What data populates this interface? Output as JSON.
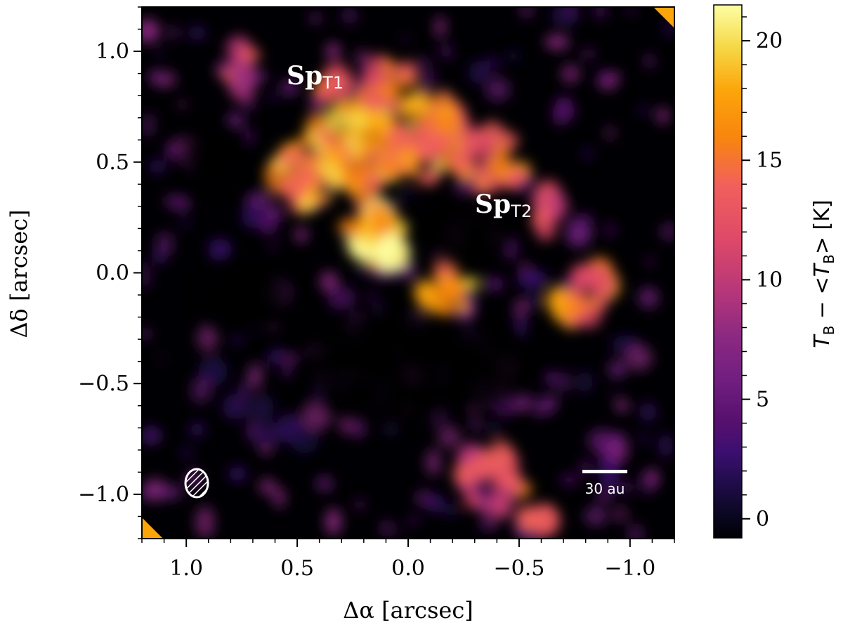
{
  "chart_data": {
    "type": "heatmap",
    "xlabel": "Δα [arcsec]",
    "ylabel": "Δδ [arcsec]",
    "xlim": [
      1.2,
      -1.2
    ],
    "ylim": [
      -1.2,
      1.2
    ],
    "x_ticks": [
      1.0,
      0.5,
      0.0,
      -0.5,
      -1.0
    ],
    "x_tick_labels": [
      "1.0",
      "0.5",
      "0.0",
      "−0.5",
      "−1.0"
    ],
    "y_ticks": [
      1.0,
      0.5,
      0.0,
      -0.5,
      -1.0
    ],
    "y_tick_labels": [
      "1.0",
      "0.5",
      "0.0",
      "−0.5",
      "−1.0"
    ],
    "colorbar": {
      "label_parts": [
        "T",
        "B",
        " − <",
        "T",
        "B",
        "> [K]"
      ],
      "range": [
        -0.8,
        21.5
      ],
      "ticks": [
        0,
        5,
        10,
        15,
        20
      ],
      "tick_labels": [
        "0",
        "5",
        "10",
        "15",
        "20"
      ],
      "colormap": "inferno"
    },
    "annotations": [
      {
        "main": "Sp",
        "sub": "T1",
        "x": 0.48,
        "y": 0.88
      },
      {
        "main": "Sp",
        "sub": "T2",
        "x": -0.4,
        "y": 0.28
      }
    ],
    "scalebar": {
      "label": "30 au"
    },
    "beam": {
      "x": 0.96,
      "y": -0.95
    }
  }
}
